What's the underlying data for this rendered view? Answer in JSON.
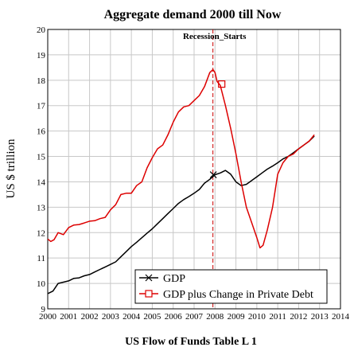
{
  "chart_data": {
    "type": "line",
    "title": "Aggregate demand 2000 till Now",
    "xlabel": "US Flow of Funds Table L 1",
    "ylabel": "US $ trillion",
    "xlim": [
      2000,
      2014
    ],
    "ylim": [
      9,
      20
    ],
    "xticks": [
      2000,
      2001,
      2002,
      2003,
      2004,
      2005,
      2006,
      2007,
      2008,
      2009,
      2010,
      2011,
      2012,
      2013,
      2014
    ],
    "yticks": [
      9,
      10,
      11,
      12,
      13,
      14,
      15,
      16,
      17,
      18,
      19,
      20
    ],
    "grid": true,
    "legend_position": "bottom-right",
    "annotation": {
      "text": "Recession_Starts",
      "x": 2007.9
    },
    "series": [
      {
        "name": "GDP",
        "color": "#000000",
        "marker": "x",
        "marker_at": [
          2007.92,
          14.28
        ],
        "x": [
          2000.0,
          2000.25,
          2000.5,
          2000.75,
          2001.0,
          2001.25,
          2001.5,
          2001.75,
          2002.0,
          2002.25,
          2002.5,
          2002.75,
          2003.0,
          2003.25,
          2003.5,
          2003.75,
          2004.0,
          2004.25,
          2004.5,
          2004.75,
          2005.0,
          2005.25,
          2005.5,
          2005.75,
          2006.0,
          2006.25,
          2006.5,
          2006.75,
          2007.0,
          2007.25,
          2007.5,
          2007.75,
          2008.0,
          2008.25,
          2008.5,
          2008.75,
          2009.0,
          2009.25,
          2009.5,
          2009.75,
          2010.0,
          2010.25,
          2010.5,
          2010.75,
          2011.0,
          2011.25,
          2011.5,
          2011.75,
          2012.0,
          2012.25,
          2012.5,
          2012.75
        ],
        "values": [
          9.6,
          9.7,
          10.0,
          10.05,
          10.1,
          10.2,
          10.22,
          10.3,
          10.35,
          10.45,
          10.55,
          10.65,
          10.75,
          10.85,
          11.05,
          11.25,
          11.45,
          11.62,
          11.8,
          11.98,
          12.15,
          12.35,
          12.55,
          12.75,
          12.95,
          13.15,
          13.3,
          13.42,
          13.55,
          13.7,
          13.95,
          14.1,
          14.28,
          14.35,
          14.45,
          14.3,
          14.0,
          13.85,
          13.9,
          14.05,
          14.2,
          14.35,
          14.5,
          14.62,
          14.75,
          14.9,
          15.0,
          15.15,
          15.3,
          15.45,
          15.6,
          15.8
        ]
      },
      {
        "name": "GDP plus Change in Private Debt",
        "color": "#dd0000",
        "marker": "square",
        "marker_at": [
          2008.32,
          17.85
        ],
        "x": [
          2000.0,
          2000.15,
          2000.3,
          2000.5,
          2000.75,
          2001.0,
          2001.25,
          2001.5,
          2001.75,
          2002.0,
          2002.25,
          2002.5,
          2002.75,
          2003.0,
          2003.25,
          2003.5,
          2003.75,
          2004.0,
          2004.25,
          2004.5,
          2004.75,
          2005.0,
          2005.25,
          2005.5,
          2005.75,
          2006.0,
          2006.25,
          2006.5,
          2006.75,
          2007.0,
          2007.25,
          2007.5,
          2007.75,
          2007.9,
          2008.0,
          2008.1,
          2008.25,
          2008.5,
          2008.75,
          2009.0,
          2009.25,
          2009.5,
          2009.75,
          2010.0,
          2010.15,
          2010.3,
          2010.5,
          2010.75,
          2011.0,
          2011.25,
          2011.5,
          2011.75,
          2012.0,
          2012.25,
          2012.5,
          2012.75
        ],
        "values": [
          11.75,
          11.65,
          11.72,
          12.0,
          11.92,
          12.2,
          12.3,
          12.32,
          12.38,
          12.45,
          12.47,
          12.55,
          12.6,
          12.9,
          13.1,
          13.5,
          13.55,
          13.55,
          13.85,
          14.0,
          14.55,
          14.95,
          15.3,
          15.45,
          15.85,
          16.35,
          16.75,
          16.95,
          17.0,
          17.2,
          17.4,
          17.75,
          18.3,
          18.42,
          18.3,
          17.95,
          17.8,
          17.0,
          16.1,
          15.1,
          14.0,
          13.0,
          12.4,
          11.8,
          11.4,
          11.5,
          12.1,
          13.0,
          14.3,
          14.75,
          15.0,
          15.1,
          15.3,
          15.45,
          15.6,
          15.85
        ]
      }
    ]
  }
}
